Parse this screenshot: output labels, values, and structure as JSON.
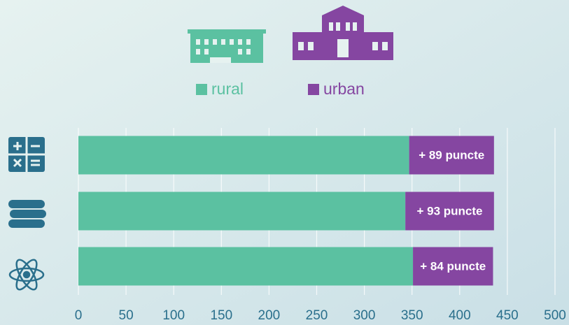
{
  "chart_data": {
    "type": "bar",
    "orientation": "horizontal",
    "stacked": true,
    "categories": [
      null,
      null,
      null
    ],
    "series": [
      {
        "name": "rural",
        "color": "#5bc1a1",
        "values": [
          347,
          343,
          351
        ]
      },
      {
        "name": "urban",
        "color": "#8546a1",
        "values": [
          89,
          93,
          84
        ],
        "value_labels": [
          "+ 89 puncte",
          "+ 93 puncte",
          "+ 84 puncte"
        ]
      }
    ],
    "xlim": [
      0,
      500
    ],
    "xticks": [
      0,
      50,
      100,
      150,
      200,
      250,
      300,
      350,
      400,
      450,
      500
    ],
    "grid": true,
    "legend": "top"
  }
}
